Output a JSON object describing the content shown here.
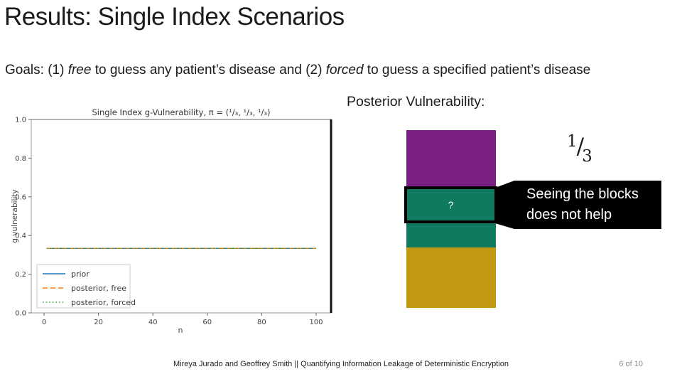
{
  "slide_title": "Results: Single Index Scenarios",
  "goals": {
    "part1": "Goals: (1) ",
    "em1": "free",
    "part2": " to guess any patient’s disease and (2) ",
    "em2": "forced",
    "part3": " to guess a specified patient’s disease"
  },
  "posterior_heading": "Posterior Vulnerability:",
  "fraction": {
    "numerator": "1",
    "slash": "/",
    "denominator": "3"
  },
  "stack": {
    "question_mark": "?",
    "colors": {
      "purple": "#7b1f80",
      "teal": "#0f7a60",
      "gold": "#c19a12"
    }
  },
  "callout": {
    "line1": "Seeing the blocks",
    "line2": "does not help",
    "bg": "#000000",
    "text_color": "#ffffff"
  },
  "footer": {
    "credits": "Mireya Jurado and Geoffrey Smith || Quantifying Information Leakage of Deterministic Encryption",
    "page_number": "6 of 10"
  },
  "chart_data": {
    "type": "line",
    "title": "Single Index g-Vulnerability, π = (¹/₃, ¹/₃, ¹/₃)",
    "xlabel": "n",
    "ylabel": "g vulnerability",
    "x_range": [
      1,
      100
    ],
    "xlim": [
      -4,
      105
    ],
    "ylim": [
      0.0,
      1.0
    ],
    "xticks": [
      0,
      20,
      40,
      60,
      80,
      100
    ],
    "yticks": [
      "0.0",
      "0.2",
      "0.4",
      "0.6",
      "0.8",
      "1.0"
    ],
    "grid": false,
    "legend_position": "lower left",
    "series": [
      {
        "name": "prior",
        "color": "#1f77b4",
        "style": "solid",
        "value": 0.3333
      },
      {
        "name": "posterior, free",
        "color": "#ff7f0e",
        "style": "dashed",
        "value": 0.3333
      },
      {
        "name": "posterior, forced",
        "color": "#2ca02c",
        "style": "dotted",
        "value": 0.3333
      }
    ]
  }
}
